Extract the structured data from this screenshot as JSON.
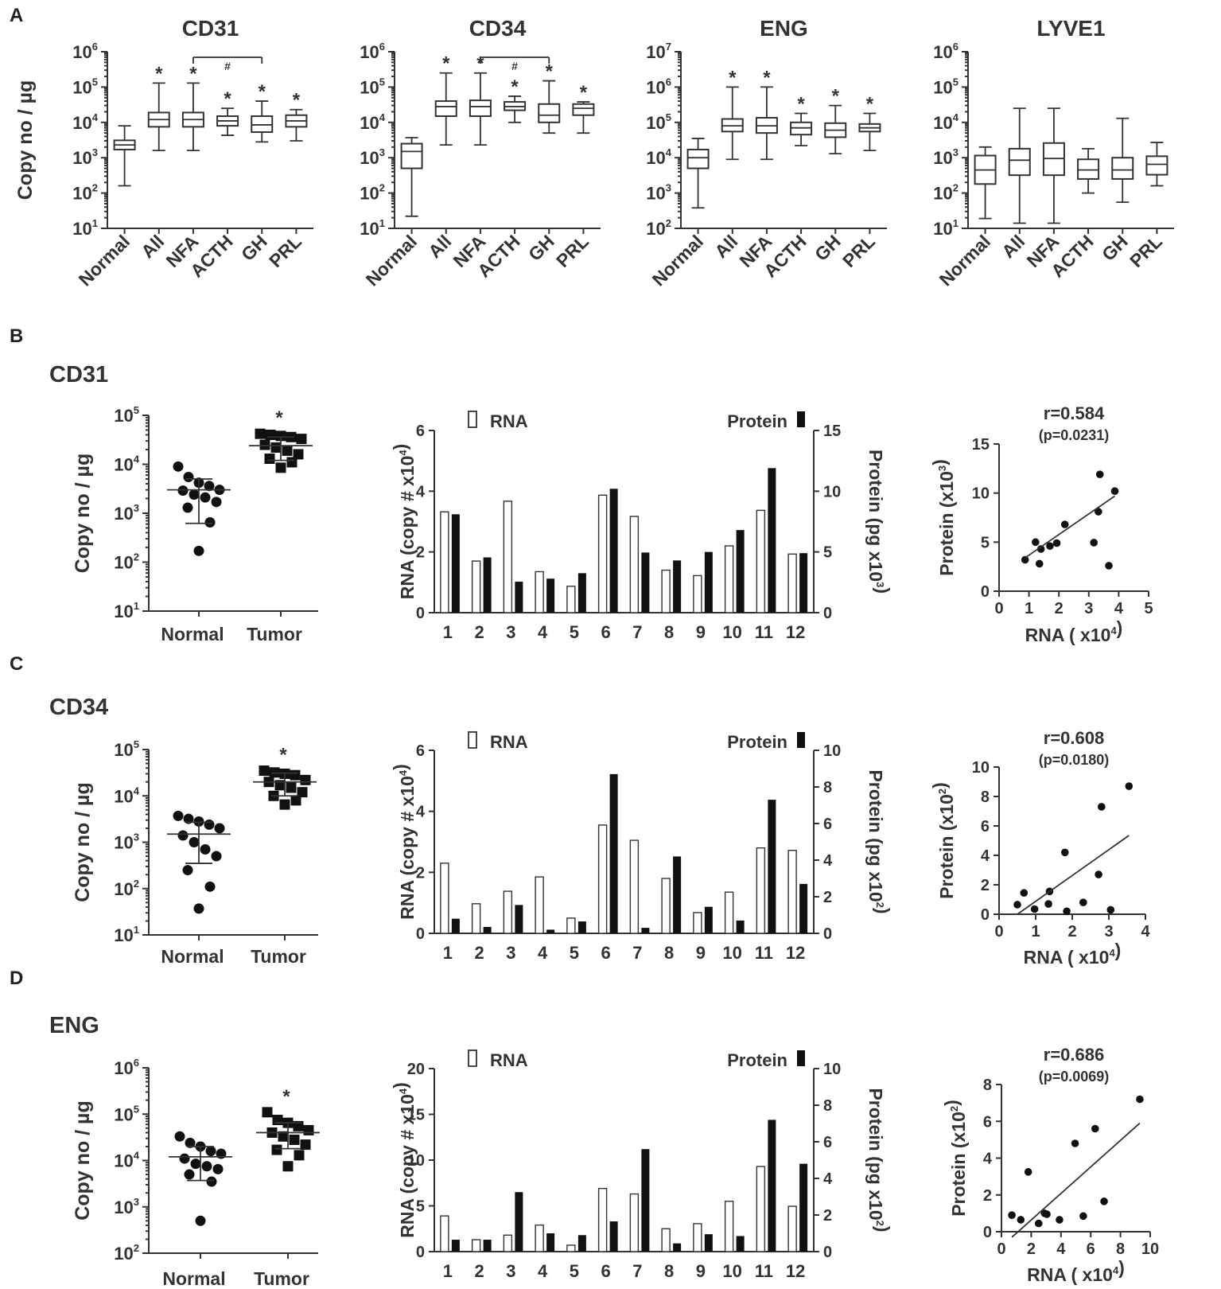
{
  "panel_letters": [
    "A",
    "B",
    "C",
    "D"
  ],
  "chart_data": [
    {
      "id": "A1",
      "type": "box",
      "title": "CD31",
      "ylabel": "Copy no / µg",
      "yscale": "log",
      "ylim_exp": [
        1,
        6
      ],
      "categories": [
        "Normal",
        "All",
        "NFA",
        "ACTH",
        "GH",
        "PRL"
      ],
      "boxes": [
        {
          "min": 160,
          "q1": 1700,
          "median": 2300,
          "q3": 3100,
          "max": 8000
        },
        {
          "min": 1600,
          "q1": 7500,
          "median": 12000,
          "q3": 19000,
          "max": 130000
        },
        {
          "min": 1600,
          "q1": 7500,
          "median": 12000,
          "q3": 19000,
          "max": 130000
        },
        {
          "min": 4300,
          "q1": 8000,
          "median": 11000,
          "q3": 15000,
          "max": 25000
        },
        {
          "min": 2800,
          "q1": 5300,
          "median": 8500,
          "q3": 15000,
          "max": 40000
        },
        {
          "min": 3000,
          "q1": 7500,
          "median": 11000,
          "q3": 16000,
          "max": 23000
        }
      ],
      "stars": [
        false,
        true,
        true,
        true,
        true,
        true
      ],
      "bracket": {
        "from": 2,
        "to": 4,
        "label": "#"
      }
    },
    {
      "id": "A2",
      "type": "box",
      "title": "CD34",
      "ylabel": "",
      "yscale": "log",
      "ylim_exp": [
        1,
        6
      ],
      "categories": [
        "Normal",
        "All",
        "NFA",
        "ACTH",
        "GH",
        "PRL"
      ],
      "boxes": [
        {
          "min": 22,
          "q1": 500,
          "median": 1500,
          "q3": 2500,
          "max": 3700
        },
        {
          "min": 2300,
          "q1": 15000,
          "median": 28000,
          "q3": 40000,
          "max": 250000
        },
        {
          "min": 2300,
          "q1": 15000,
          "median": 28000,
          "q3": 42000,
          "max": 250000
        },
        {
          "min": 10000,
          "q1": 22000,
          "median": 28000,
          "q3": 38000,
          "max": 55000
        },
        {
          "min": 5000,
          "q1": 10000,
          "median": 16000,
          "q3": 33000,
          "max": 150000
        },
        {
          "min": 5000,
          "q1": 16000,
          "median": 25000,
          "q3": 33000,
          "max": 38000
        }
      ],
      "stars": [
        false,
        true,
        true,
        true,
        true,
        true
      ],
      "bracket": {
        "from": 2,
        "to": 4,
        "label": "#"
      }
    },
    {
      "id": "A3",
      "type": "box",
      "title": "ENG",
      "ylabel": "",
      "yscale": "log",
      "ylim_exp": [
        2,
        7
      ],
      "categories": [
        "Normal",
        "All",
        "NFA",
        "ACTH",
        "GH",
        "PRL"
      ],
      "boxes": [
        {
          "min": 380,
          "q1": 5000,
          "median": 10000,
          "q3": 17000,
          "max": 35000
        },
        {
          "min": 9000,
          "q1": 55000,
          "median": 80000,
          "q3": 125000,
          "max": 1000000
        },
        {
          "min": 9000,
          "q1": 50000,
          "median": 80000,
          "q3": 135000,
          "max": 1000000
        },
        {
          "min": 22000,
          "q1": 45000,
          "median": 70000,
          "q3": 100000,
          "max": 180000
        },
        {
          "min": 13000,
          "q1": 38000,
          "median": 60000,
          "q3": 95000,
          "max": 300000
        },
        {
          "min": 16000,
          "q1": 55000,
          "median": 70000,
          "q3": 90000,
          "max": 180000
        }
      ],
      "stars": [
        false,
        true,
        true,
        true,
        true,
        true
      ],
      "bracket": null
    },
    {
      "id": "A4",
      "type": "box",
      "title": "LYVE1",
      "ylabel": "",
      "yscale": "log",
      "ylim_exp": [
        1,
        6
      ],
      "categories": [
        "Normal",
        "All",
        "NFA",
        "ACTH",
        "GH",
        "PRL"
      ],
      "boxes": [
        {
          "min": 19,
          "q1": 180,
          "median": 450,
          "q3": 1150,
          "max": 2000
        },
        {
          "min": 14,
          "q1": 320,
          "median": 850,
          "q3": 1800,
          "max": 25000
        },
        {
          "min": 14,
          "q1": 320,
          "median": 950,
          "q3": 2600,
          "max": 25000
        },
        {
          "min": 100,
          "q1": 250,
          "median": 450,
          "q3": 900,
          "max": 1800
        },
        {
          "min": 55,
          "q1": 250,
          "median": 450,
          "q3": 1000,
          "max": 13000
        },
        {
          "min": 160,
          "q1": 330,
          "median": 650,
          "q3": 1100,
          "max": 2700
        }
      ],
      "stars": [
        false,
        false,
        false,
        false,
        false,
        false
      ],
      "bracket": null
    },
    {
      "id": "B1",
      "type": "scatter",
      "gene": "CD31",
      "ylabel": "Copy no / µg",
      "yscale": "log",
      "ylim_exp": [
        1,
        5
      ],
      "categories": [
        "Normal",
        "Tumor"
      ],
      "groups": [
        {
          "name": "Normal",
          "marker": "circle",
          "mean": 3000,
          "sd_lo": 620,
          "sd_hi": 5000,
          "values": [
            9000,
            5500,
            4200,
            3600,
            3000,
            2900,
            2400,
            2100,
            1700,
            1300,
            650,
            170
          ]
        },
        {
          "name": "Tumor",
          "marker": "square",
          "mean": 24000,
          "sd_lo": 12000,
          "sd_hi": 36000,
          "values": [
            42000,
            40000,
            38000,
            36000,
            33000,
            25000,
            22000,
            19000,
            16000,
            13000,
            11000,
            8500
          ]
        }
      ],
      "star": true
    },
    {
      "id": "B2",
      "type": "bar",
      "ylabel": "RNA (copy # x10⁴)",
      "y2label": "Protein (pg x10³)",
      "ylim": [
        0,
        6
      ],
      "y2lim": [
        0,
        15
      ],
      "yticks": [
        0,
        2,
        4,
        6
      ],
      "y2ticks": [
        0,
        5,
        10,
        15
      ],
      "legend_rna": "RNA",
      "legend_protein": "Protein",
      "categories": [
        "1",
        "2",
        "3",
        "4",
        "5",
        "6",
        "7",
        "8",
        "9",
        "10",
        "11",
        "12"
      ],
      "series": [
        {
          "name": "RNA",
          "axis": "left",
          "fill": "#ffffff",
          "values": [
            3.32,
            1.7,
            3.67,
            1.35,
            0.87,
            3.87,
            3.17,
            1.4,
            1.22,
            2.2,
            3.37,
            1.93
          ]
        },
        {
          "name": "Protein",
          "axis": "right",
          "fill": "#000000",
          "values": [
            8.1,
            4.55,
            2.55,
            2.8,
            3.25,
            10.2,
            4.95,
            4.3,
            5.0,
            6.8,
            11.9,
            4.9
          ]
        }
      ]
    },
    {
      "id": "B3",
      "type": "scatter-fit",
      "r_label": "r=0.584",
      "p_label": "(p=0.0231)",
      "xlabel": "RNA ( x10⁴)",
      "ylabel": "Protein (x10³)",
      "xlim": [
        0,
        5
      ],
      "ylim": [
        0,
        15
      ],
      "xticks": [
        0,
        1,
        2,
        3,
        4,
        5
      ],
      "yticks": [
        0,
        5,
        10,
        15
      ],
      "points": [
        [
          0.87,
          3.2
        ],
        [
          1.22,
          5.0
        ],
        [
          1.35,
          2.8
        ],
        [
          1.4,
          4.3
        ],
        [
          1.7,
          4.6
        ],
        [
          1.93,
          4.9
        ],
        [
          2.2,
          6.8
        ],
        [
          3.17,
          4.95
        ],
        [
          3.32,
          8.1
        ],
        [
          3.37,
          11.9
        ],
        [
          3.67,
          2.6
        ],
        [
          3.87,
          10.2
        ]
      ],
      "fit": {
        "x0": 0.87,
        "y0": 3.4,
        "x1": 3.87,
        "y1": 9.7
      }
    },
    {
      "id": "C1",
      "type": "scatter",
      "gene": "CD34",
      "ylabel": "Copy no / µg",
      "yscale": "log",
      "ylim_exp": [
        1,
        5
      ],
      "categories": [
        "Normal",
        "Tumor"
      ],
      "groups": [
        {
          "name": "Normal",
          "marker": "circle",
          "mean": 1500,
          "sd_lo": 350,
          "sd_hi": 2700,
          "values": [
            3700,
            3200,
            2800,
            2400,
            2000,
            1400,
            1000,
            700,
            500,
            250,
            110,
            37
          ]
        },
        {
          "name": "Tumor",
          "marker": "square",
          "mean": 20000,
          "sd_lo": 10000,
          "sd_hi": 31000,
          "values": [
            35000,
            32000,
            30000,
            28000,
            22000,
            20000,
            17000,
            15000,
            12000,
            10000,
            8000,
            6500
          ]
        }
      ],
      "star": true
    },
    {
      "id": "C2",
      "type": "bar",
      "ylabel": "RNA (copy # x10⁴)",
      "y2label": "Protein (pg x10²)",
      "ylim": [
        0,
        6
      ],
      "y2lim": [
        0,
        10
      ],
      "yticks": [
        0,
        2,
        4,
        6
      ],
      "y2ticks": [
        0,
        2,
        4,
        6,
        8,
        10
      ],
      "legend_rna": "RNA",
      "legend_protein": "Protein",
      "categories": [
        "1",
        "2",
        "3",
        "4",
        "5",
        "6",
        "7",
        "8",
        "9",
        "10",
        "11",
        "12"
      ],
      "series": [
        {
          "name": "RNA",
          "axis": "left",
          "fill": "#ffffff",
          "values": [
            2.3,
            0.97,
            1.38,
            1.85,
            0.5,
            3.55,
            3.05,
            1.8,
            0.68,
            1.35,
            2.8,
            2.72
          ]
        },
        {
          "name": "Protein",
          "axis": "right",
          "fill": "#000000",
          "values": [
            0.8,
            0.35,
            1.55,
            0.2,
            0.65,
            8.7,
            0.3,
            4.2,
            1.45,
            0.7,
            7.3,
            2.7
          ]
        }
      ]
    },
    {
      "id": "C3",
      "type": "scatter-fit",
      "r_label": "r=0.608",
      "p_label": "(p=0.0180)",
      "xlabel": "RNA ( x10⁴)",
      "ylabel": "Protein (x10²)",
      "xlim": [
        0,
        4
      ],
      "ylim": [
        0,
        10
      ],
      "xticks": [
        0,
        1,
        2,
        3,
        4
      ],
      "yticks": [
        0,
        2,
        4,
        6,
        8,
        10
      ],
      "points": [
        [
          0.5,
          0.65
        ],
        [
          0.68,
          1.45
        ],
        [
          0.97,
          0.35
        ],
        [
          1.35,
          0.7
        ],
        [
          1.38,
          1.55
        ],
        [
          1.8,
          4.2
        ],
        [
          1.85,
          0.2
        ],
        [
          2.3,
          0.8
        ],
        [
          2.72,
          2.7
        ],
        [
          2.8,
          7.3
        ],
        [
          3.05,
          0.3
        ],
        [
          3.55,
          8.7
        ]
      ],
      "fit": {
        "x0": 0.5,
        "y0": 0.0,
        "x1": 3.55,
        "y1": 5.35
      }
    },
    {
      "id": "D1",
      "type": "scatter",
      "gene": "ENG",
      "ylabel": "Copy no / µg",
      "yscale": "log",
      "ylim_exp": [
        2,
        6
      ],
      "categories": [
        "Normal",
        "Tumor"
      ],
      "groups": [
        {
          "name": "Normal",
          "marker": "circle",
          "mean": 12000,
          "sd_lo": 3700,
          "sd_hi": 20000,
          "values": [
            33000,
            24000,
            20000,
            16000,
            14000,
            11000,
            8500,
            7500,
            6500,
            5000,
            3500,
            500
          ]
        },
        {
          "name": "Tumor",
          "marker": "square",
          "mean": 40000,
          "sd_lo": 18000,
          "sd_hi": 65000,
          "values": [
            110000,
            75000,
            65000,
            55000,
            45000,
            40000,
            33000,
            28000,
            22000,
            17000,
            13000,
            7500
          ]
        }
      ],
      "star": true
    },
    {
      "id": "D2",
      "type": "bar",
      "ylabel": "RNA (copy # x10⁴)",
      "y2label": "Protein (pg x10²)",
      "ylim": [
        0,
        20
      ],
      "y2lim": [
        0,
        10
      ],
      "yticks": [
        0,
        5,
        10,
        15,
        20
      ],
      "y2ticks": [
        0,
        2,
        4,
        6,
        8,
        10
      ],
      "legend_rna": "RNA",
      "legend_protein": "Protein",
      "categories": [
        "1",
        "2",
        "3",
        "4",
        "5",
        "6",
        "7",
        "8",
        "9",
        "10",
        "11",
        "12"
      ],
      "series": [
        {
          "name": "RNA",
          "axis": "left",
          "fill": "#ffffff",
          "values": [
            3.9,
            1.3,
            1.8,
            2.9,
            0.7,
            6.9,
            6.3,
            2.5,
            3.05,
            5.5,
            9.3,
            4.95
          ]
        },
        {
          "name": "Protein",
          "axis": "right",
          "fill": "#000000",
          "values": [
            0.65,
            0.65,
            3.25,
            1.0,
            0.9,
            1.65,
            5.6,
            0.45,
            0.95,
            0.85,
            7.2,
            4.8
          ]
        }
      ]
    },
    {
      "id": "D3",
      "type": "scatter-fit",
      "r_label": "r=0.686",
      "p_label": "(p=0.0069)",
      "xlabel": "RNA ( x10⁴)",
      "ylabel": "Protein (x10²)",
      "xlim": [
        0,
        10
      ],
      "ylim": [
        0,
        8
      ],
      "xticks": [
        0,
        2,
        4,
        6,
        8,
        10
      ],
      "yticks": [
        0,
        2,
        4,
        6,
        8
      ],
      "points": [
        [
          0.7,
          0.9
        ],
        [
          1.3,
          0.65
        ],
        [
          1.8,
          3.25
        ],
        [
          2.5,
          0.45
        ],
        [
          2.9,
          1.0
        ],
        [
          3.05,
          0.95
        ],
        [
          3.9,
          0.65
        ],
        [
          4.95,
          4.8
        ],
        [
          5.5,
          0.85
        ],
        [
          6.3,
          5.6
        ],
        [
          6.9,
          1.65
        ],
        [
          9.3,
          7.2
        ]
      ],
      "fit": {
        "x0": 0.7,
        "y0": -0.3,
        "x1": 9.3,
        "y1": 5.9
      }
    }
  ]
}
